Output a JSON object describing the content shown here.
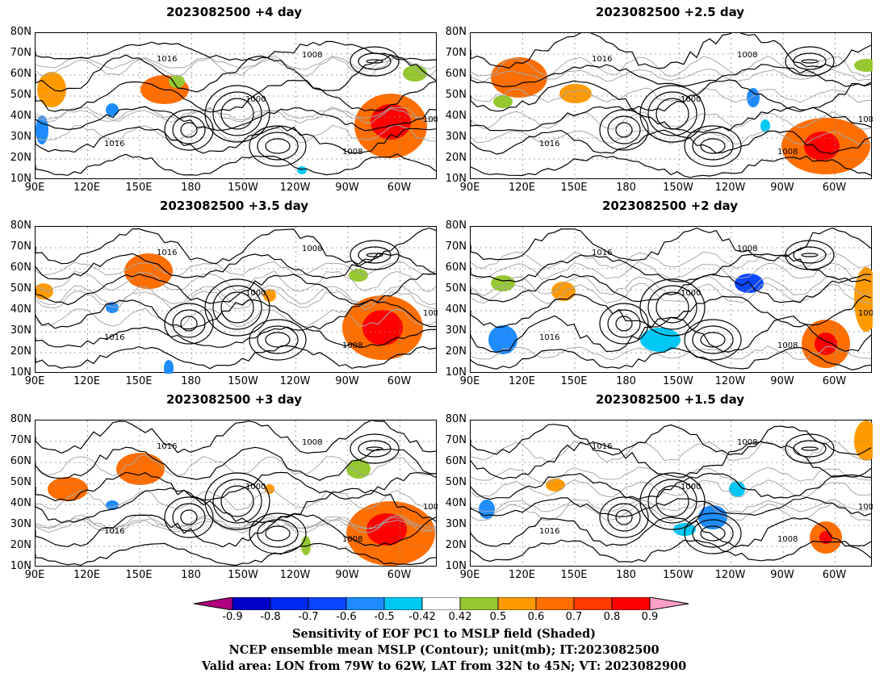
{
  "panels": [
    {
      "title": "2023082500  +4 day"
    },
    {
      "title": "2023082500  +2.5 day"
    },
    {
      "title": "2023082500  +3.5 day"
    },
    {
      "title": "2023082500  +2 day"
    },
    {
      "title": "2023082500  +3 day"
    },
    {
      "title": "2023082500  +1.5 day"
    }
  ],
  "axes": {
    "lat_labels": [
      "80N",
      "70N",
      "60N",
      "50N",
      "40N",
      "30N",
      "20N",
      "10N"
    ],
    "lon_labels": [
      "90E",
      "120E",
      "150E",
      "180",
      "150W",
      "120W",
      "90W",
      "60W"
    ]
  },
  "contour_labels": [
    "1016",
    "1008",
    "1000"
  ],
  "colorbar": {
    "ticks": [
      "-0.9",
      "-0.8",
      "-0.7",
      "-0.6",
      "-0.5",
      "-0.42",
      "0.42",
      "0.5",
      "0.6",
      "0.7",
      "0.8",
      "0.9"
    ],
    "colors": [
      "#b0007f",
      "#0000c8",
      "#0028f0",
      "#0a46ff",
      "#1e8cff",
      "#00c8f5",
      "#ffffff",
      "#96c832",
      "#ff9b00",
      "#ff6e00",
      "#ff3c00",
      "#ff0000",
      "#ffa0c8"
    ]
  },
  "caption": {
    "line1": "Sensitivity of EOF PC1 to MSLP field (Shaded)",
    "line2": "NCEP ensemble mean MSLP (Contour); unit(mb); IT:2023082500",
    "line3": "Valid area: LON from 79W to 62W, LAT from 32N to 45N; VT: 2023082900"
  }
}
